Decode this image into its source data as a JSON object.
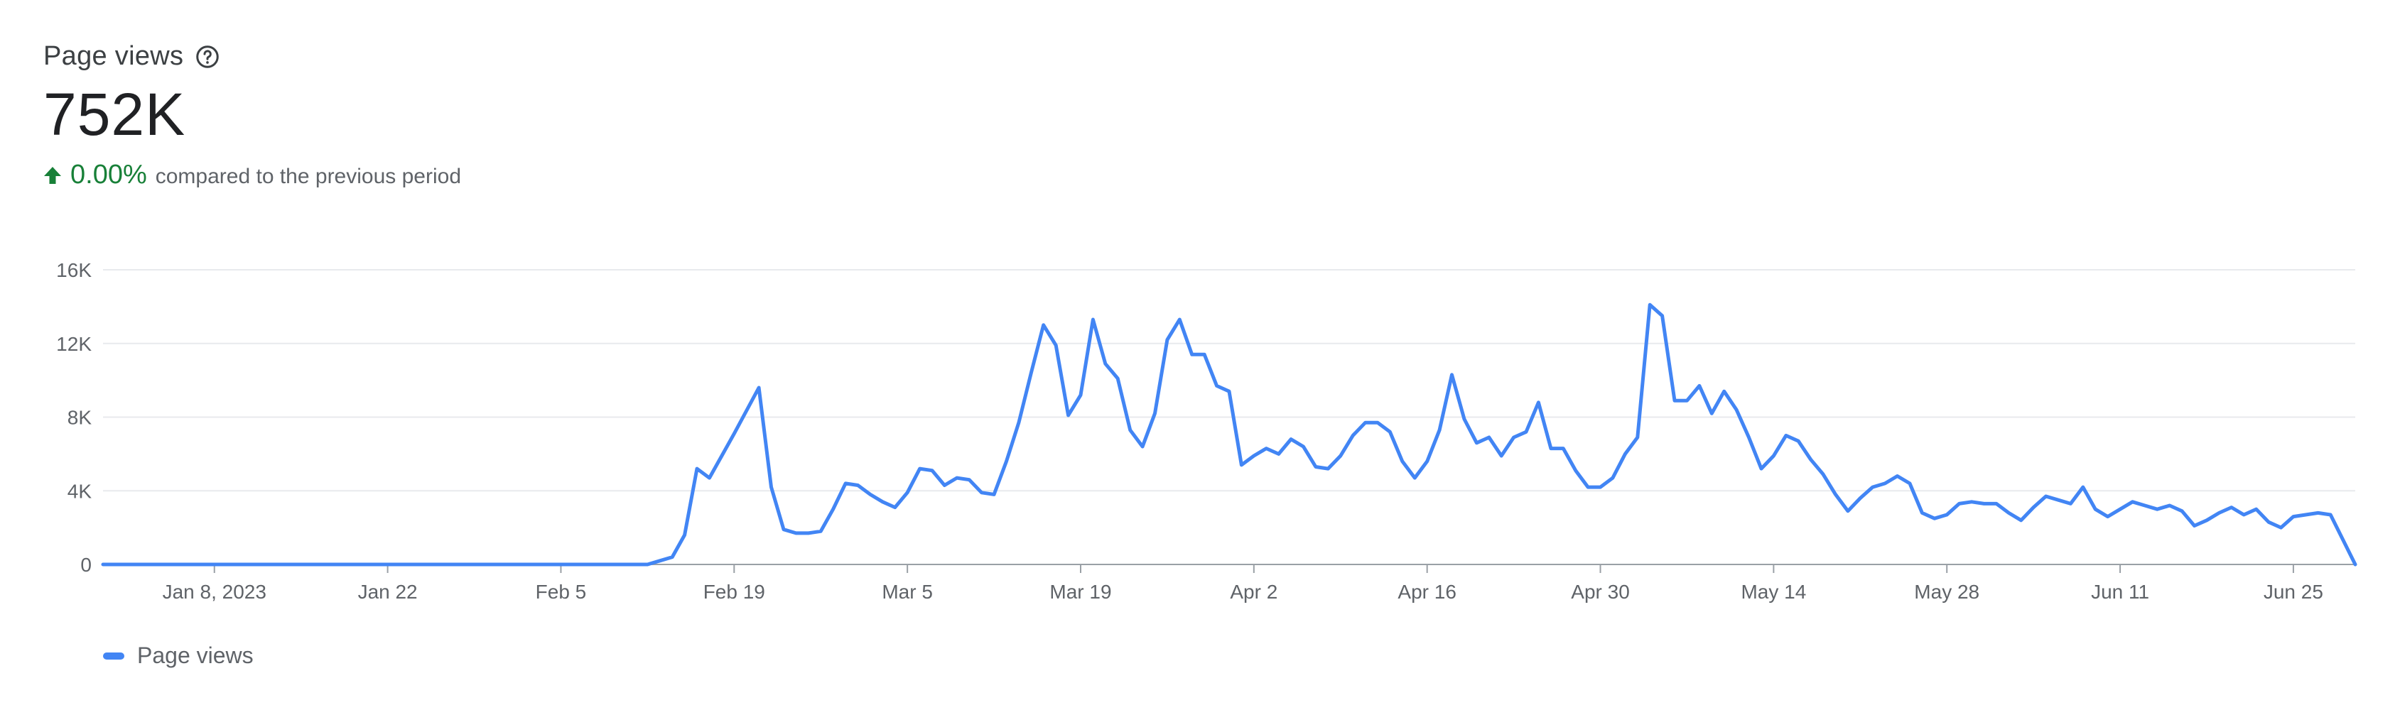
{
  "header": {
    "title": "Page views",
    "value": "752K",
    "delta": "0.00%",
    "compare_text": "compared to the previous period"
  },
  "icons": {
    "help": "help-circle-icon",
    "trend": "arrow-up-icon"
  },
  "colors": {
    "series": "#4285f4",
    "positive": "#188038",
    "grid": "#e8eaed",
    "axis": "#9aa0a6"
  },
  "chart_data": {
    "type": "line",
    "title": "Page views",
    "xlabel": "",
    "ylabel": "",
    "ylim": [
      0,
      16000
    ],
    "y_ticks": [
      {
        "value": 0,
        "label": "0"
      },
      {
        "value": 4000,
        "label": "4K"
      },
      {
        "value": 8000,
        "label": "8K"
      },
      {
        "value": 12000,
        "label": "12K"
      },
      {
        "value": 16000,
        "label": "16K"
      }
    ],
    "x_ticks": [
      {
        "date": "2023-01-08",
        "label": "Jan 8, 2023"
      },
      {
        "date": "2023-01-22",
        "label": "Jan 22"
      },
      {
        "date": "2023-02-05",
        "label": "Feb 5"
      },
      {
        "date": "2023-02-19",
        "label": "Feb 19"
      },
      {
        "date": "2023-03-05",
        "label": "Mar 5"
      },
      {
        "date": "2023-03-19",
        "label": "Mar 19"
      },
      {
        "date": "2023-04-02",
        "label": "Apr 2"
      },
      {
        "date": "2023-04-16",
        "label": "Apr 16"
      },
      {
        "date": "2023-04-30",
        "label": "Apr 30"
      },
      {
        "date": "2023-05-14",
        "label": "May 14"
      },
      {
        "date": "2023-05-28",
        "label": "May 28"
      },
      {
        "date": "2023-06-11",
        "label": "Jun 11"
      },
      {
        "date": "2023-06-25",
        "label": "Jun 25"
      }
    ],
    "grid": true,
    "legend_position": "bottom-left",
    "series": [
      {
        "name": "Page views",
        "points": [
          [
            "2022-12-30",
            0
          ],
          [
            "2023-01-01",
            0
          ],
          [
            "2023-01-08",
            0
          ],
          [
            "2023-01-15",
            0
          ],
          [
            "2023-01-22",
            0
          ],
          [
            "2023-01-29",
            0
          ],
          [
            "2023-02-05",
            0
          ],
          [
            "2023-02-10",
            0
          ],
          [
            "2023-02-12",
            0
          ],
          [
            "2023-02-13",
            200
          ],
          [
            "2023-02-14",
            400
          ],
          [
            "2023-02-15",
            1600
          ],
          [
            "2023-02-16",
            5200
          ],
          [
            "2023-02-17",
            4700
          ],
          [
            "2023-02-18",
            5900
          ],
          [
            "2023-02-19",
            7100
          ],
          [
            "2023-02-21",
            9600
          ],
          [
            "2023-02-22",
            4200
          ],
          [
            "2023-02-23",
            1900
          ],
          [
            "2023-02-24",
            1700
          ],
          [
            "2023-02-25",
            1700
          ],
          [
            "2023-02-26",
            1800
          ],
          [
            "2023-02-27",
            3000
          ],
          [
            "2023-02-28",
            4400
          ],
          [
            "2023-03-01",
            4300
          ],
          [
            "2023-03-02",
            3800
          ],
          [
            "2023-03-03",
            3400
          ],
          [
            "2023-03-04",
            3100
          ],
          [
            "2023-03-05",
            3900
          ],
          [
            "2023-03-06",
            5200
          ],
          [
            "2023-03-07",
            5100
          ],
          [
            "2023-03-08",
            4300
          ],
          [
            "2023-03-09",
            4700
          ],
          [
            "2023-03-10",
            4600
          ],
          [
            "2023-03-11",
            3900
          ],
          [
            "2023-03-12",
            3800
          ],
          [
            "2023-03-13",
            5600
          ],
          [
            "2023-03-14",
            7700
          ],
          [
            "2023-03-15",
            10400
          ],
          [
            "2023-03-16",
            13000
          ],
          [
            "2023-03-17",
            11900
          ],
          [
            "2023-03-18",
            8100
          ],
          [
            "2023-03-19",
            9200
          ],
          [
            "2023-03-20",
            13300
          ],
          [
            "2023-03-21",
            10900
          ],
          [
            "2023-03-22",
            10100
          ],
          [
            "2023-03-23",
            7300
          ],
          [
            "2023-03-24",
            6400
          ],
          [
            "2023-03-25",
            8200
          ],
          [
            "2023-03-26",
            12200
          ],
          [
            "2023-03-27",
            13300
          ],
          [
            "2023-03-28",
            11400
          ],
          [
            "2023-03-29",
            11400
          ],
          [
            "2023-03-30",
            9700
          ],
          [
            "2023-03-31",
            9400
          ],
          [
            "2023-04-01",
            5400
          ],
          [
            "2023-04-02",
            5900
          ],
          [
            "2023-04-03",
            6300
          ],
          [
            "2023-04-04",
            6000
          ],
          [
            "2023-04-05",
            6800
          ],
          [
            "2023-04-06",
            6400
          ],
          [
            "2023-04-07",
            5300
          ],
          [
            "2023-04-08",
            5200
          ],
          [
            "2023-04-09",
            5900
          ],
          [
            "2023-04-10",
            7000
          ],
          [
            "2023-04-11",
            7700
          ],
          [
            "2023-04-12",
            7700
          ],
          [
            "2023-04-13",
            7200
          ],
          [
            "2023-04-14",
            5600
          ],
          [
            "2023-04-15",
            4700
          ],
          [
            "2023-04-16",
            5600
          ],
          [
            "2023-04-17",
            7300
          ],
          [
            "2023-04-18",
            10300
          ],
          [
            "2023-04-19",
            7900
          ],
          [
            "2023-04-20",
            6600
          ],
          [
            "2023-04-21",
            6900
          ],
          [
            "2023-04-22",
            5900
          ],
          [
            "2023-04-23",
            6900
          ],
          [
            "2023-04-24",
            7200
          ],
          [
            "2023-04-25",
            8800
          ],
          [
            "2023-04-26",
            6300
          ],
          [
            "2023-04-27",
            6300
          ],
          [
            "2023-04-28",
            5100
          ],
          [
            "2023-04-29",
            4200
          ],
          [
            "2023-04-30",
            4200
          ],
          [
            "2023-05-01",
            4700
          ],
          [
            "2023-05-02",
            6000
          ],
          [
            "2023-05-03",
            6900
          ],
          [
            "2023-05-04",
            14100
          ],
          [
            "2023-05-05",
            13500
          ],
          [
            "2023-05-06",
            8900
          ],
          [
            "2023-05-07",
            8900
          ],
          [
            "2023-05-08",
            9700
          ],
          [
            "2023-05-09",
            8200
          ],
          [
            "2023-05-10",
            9400
          ],
          [
            "2023-05-11",
            8400
          ],
          [
            "2023-05-12",
            6900
          ],
          [
            "2023-05-13",
            5200
          ],
          [
            "2023-05-14",
            5900
          ],
          [
            "2023-05-15",
            7000
          ],
          [
            "2023-05-16",
            6700
          ],
          [
            "2023-05-17",
            5700
          ],
          [
            "2023-05-18",
            4900
          ],
          [
            "2023-05-19",
            3800
          ],
          [
            "2023-05-20",
            2900
          ],
          [
            "2023-05-21",
            3600
          ],
          [
            "2023-05-22",
            4200
          ],
          [
            "2023-05-23",
            4400
          ],
          [
            "2023-05-24",
            4800
          ],
          [
            "2023-05-25",
            4400
          ],
          [
            "2023-05-26",
            2800
          ],
          [
            "2023-05-27",
            2500
          ],
          [
            "2023-05-28",
            2700
          ],
          [
            "2023-05-29",
            3300
          ],
          [
            "2023-05-30",
            3400
          ],
          [
            "2023-05-31",
            3300
          ],
          [
            "2023-06-01",
            3300
          ],
          [
            "2023-06-02",
            2800
          ],
          [
            "2023-06-03",
            2400
          ],
          [
            "2023-06-04",
            3100
          ],
          [
            "2023-06-05",
            3700
          ],
          [
            "2023-06-06",
            3500
          ],
          [
            "2023-06-07",
            3300
          ],
          [
            "2023-06-08",
            4200
          ],
          [
            "2023-06-09",
            3000
          ],
          [
            "2023-06-10",
            2600
          ],
          [
            "2023-06-11",
            3000
          ],
          [
            "2023-06-12",
            3400
          ],
          [
            "2023-06-13",
            3200
          ],
          [
            "2023-06-14",
            3000
          ],
          [
            "2023-06-15",
            3200
          ],
          [
            "2023-06-16",
            2900
          ],
          [
            "2023-06-17",
            2100
          ],
          [
            "2023-06-18",
            2400
          ],
          [
            "2023-06-19",
            2800
          ],
          [
            "2023-06-20",
            3100
          ],
          [
            "2023-06-21",
            2700
          ],
          [
            "2023-06-22",
            3000
          ],
          [
            "2023-06-23",
            2300
          ],
          [
            "2023-06-24",
            2000
          ],
          [
            "2023-06-25",
            2600
          ],
          [
            "2023-06-26",
            2700
          ],
          [
            "2023-06-27",
            2800
          ],
          [
            "2023-06-28",
            2700
          ],
          [
            "2023-06-30",
            0
          ]
        ]
      }
    ]
  }
}
